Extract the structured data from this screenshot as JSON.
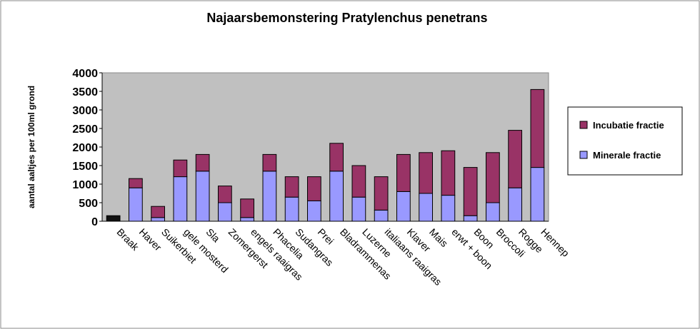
{
  "chart_data": {
    "type": "stacked_bar",
    "title": "Najaarsbemonstering Pratylenchus penetrans",
    "y_label": "aantal aaltjes per 100ml grond",
    "categories": [
      "Braak",
      "Haver",
      "Suikerbiet",
      "gele mosterd",
      "Sla",
      "Zomergerst",
      "engels raaigras",
      "Phacelia",
      "Sudangras",
      "Prei",
      "Bladrammenas",
      "Luzerne",
      "italiaans raaigras",
      "Klaver",
      "Mais",
      "erwt + boon",
      "Boon",
      "Broccoli",
      "Rogge",
      "Hennep"
    ],
    "series": [
      {
        "name": "Minerale fractie",
        "color": "#9999ff",
        "colors": [
          "#111111",
          "#9999ff",
          "#9999ff",
          "#9999ff",
          "#9999ff",
          "#9999ff",
          "#9999ff",
          "#9999ff",
          "#9999ff",
          "#9999ff",
          "#9999ff",
          "#9999ff",
          "#9999ff",
          "#9999ff",
          "#9999ff",
          "#9999ff",
          "#9999ff",
          "#9999ff",
          "#9999ff",
          "#9999ff"
        ],
        "values": [
          150,
          900,
          100,
          1200,
          1350,
          500,
          100,
          1350,
          650,
          550,
          1350,
          650,
          300,
          800,
          750,
          700,
          150,
          500,
          900,
          1450
        ]
      },
      {
        "name": "Incubatie fractie",
        "color": "#993366",
        "values": [
          0,
          250,
          300,
          450,
          450,
          450,
          500,
          450,
          550,
          650,
          750,
          850,
          900,
          1000,
          1100,
          1200,
          1300,
          1350,
          1550,
          2100
        ]
      }
    ],
    "ylim": [
      0,
      4000
    ],
    "yticks": [
      0,
      500,
      1000,
      1500,
      2000,
      2500,
      3000,
      3500,
      4000
    ],
    "legend": "right"
  }
}
